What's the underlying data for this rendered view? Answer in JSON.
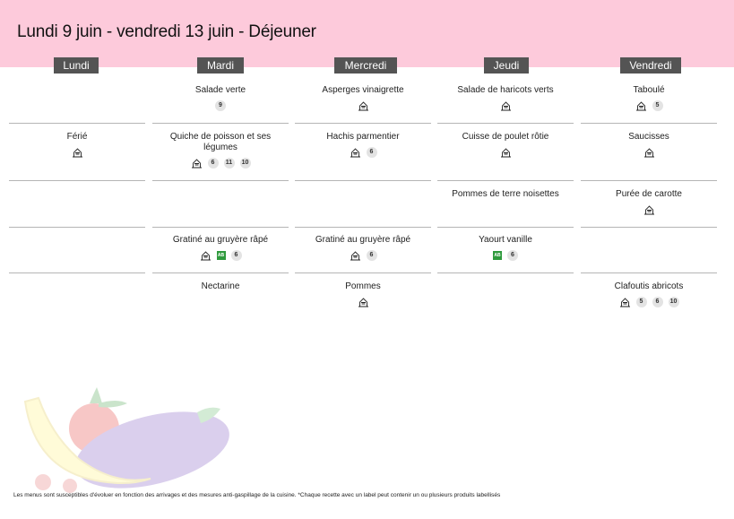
{
  "title": "Lundi 9 juin - vendredi 13 juin  - Déjeuner",
  "days": [
    "Lundi",
    "Mardi",
    "Mercredi",
    "Jeudi",
    "Vendredi"
  ],
  "rows": [
    [
      {
        "dish": "",
        "marks": []
      },
      {
        "dish": "Salade verte",
        "marks": [
          "9"
        ]
      },
      {
        "dish": "Asperges vinaigrette",
        "marks": [
          "homemade"
        ]
      },
      {
        "dish": "Salade de haricots verts",
        "marks": [
          "homemade"
        ]
      },
      {
        "dish": "Taboulé",
        "marks": [
          "homemade",
          "5"
        ]
      }
    ],
    [
      {
        "dish": "Férié",
        "marks": [
          "homemade"
        ]
      },
      {
        "dish": "Quiche de poisson et ses légumes",
        "marks": [
          "homemade",
          "6",
          "11",
          "10"
        ]
      },
      {
        "dish": "Hachis parmentier",
        "marks": [
          "homemade",
          "6"
        ]
      },
      {
        "dish": "Cuisse de poulet rôtie",
        "marks": [
          "homemade"
        ]
      },
      {
        "dish": "Saucisses",
        "marks": [
          "homemade"
        ]
      }
    ],
    [
      {
        "dish": "",
        "marks": []
      },
      {
        "dish": "",
        "marks": []
      },
      {
        "dish": "",
        "marks": []
      },
      {
        "dish": "Pommes de terre noisettes",
        "marks": []
      },
      {
        "dish": "Purée de carotte",
        "marks": [
          "homemade"
        ]
      }
    ],
    [
      {
        "dish": "",
        "marks": []
      },
      {
        "dish": "Gratiné au gruyère râpé",
        "marks": [
          "homemade",
          "organic",
          "6"
        ]
      },
      {
        "dish": "Gratiné au gruyère râpé",
        "marks": [
          "homemade",
          "6"
        ]
      },
      {
        "dish": "Yaourt  vanille",
        "marks": [
          "organic",
          "6"
        ]
      },
      {
        "dish": "",
        "marks": []
      }
    ],
    [
      {
        "dish": "",
        "marks": []
      },
      {
        "dish": "Nectarine",
        "marks": []
      },
      {
        "dish": "Pommes",
        "marks": [
          "homemade"
        ]
      },
      {
        "dish": "",
        "marks": []
      },
      {
        "dish": "Clafoutis abricots",
        "marks": [
          "homemade",
          "5",
          "6",
          "10"
        ]
      }
    ]
  ],
  "organic_label": "AB",
  "footer": "Les menus sont susceptibles d'évoluer en fonction des arrivages et des mesures anti-gaspillage de la cuisine. *Chaque recette avec un label peut contenir un ou plusieurs produits labellisés",
  "colors": {
    "header": "#fdcadb",
    "day_tab": "#545454",
    "badge": "#e3e3e3",
    "organic": "#2f9a3d"
  },
  "icons": {
    "homemade": "homemade-icon",
    "organic": "organic-label-icon",
    "decoration": "fruits-vegetables-illustration"
  }
}
